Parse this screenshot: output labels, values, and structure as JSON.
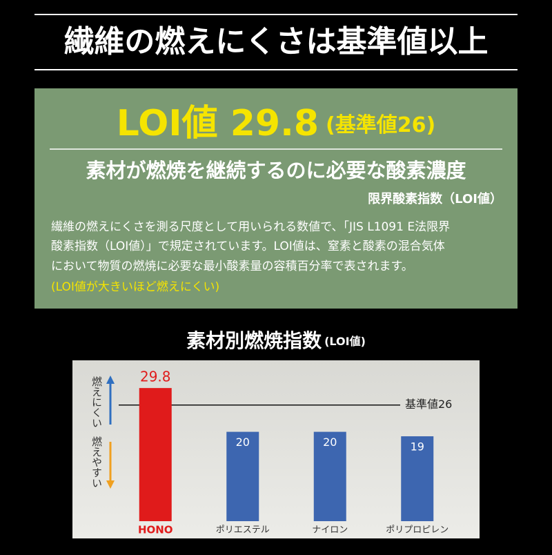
{
  "header": {
    "title": "繊維の燃えにくさは基準値以上"
  },
  "panel": {
    "headline": "LOI値 29.8",
    "headline_note": "(基準値26)",
    "subtitle": "素材が燃焼を継続するのに必要な酸素濃度",
    "subtitle_note": "限界酸素指数（LOI値）",
    "lines": [
      "繊維の燃えにくさを測る尺度として用いられる数値で、「JIS L1091 E法限界",
      "酸素指数（LOI値）」で規定されています。LOI値は、窒素と酸素の混合気体",
      "において物質の燃焼に必要な最小酸素量の容積百分率で表されます。"
    ],
    "note": "(LOI値が大きいほど燃えにくい)"
  },
  "chart_data": {
    "type": "bar",
    "title": "素材別燃焼指数",
    "title_note": "(LOI値)",
    "categories": [
      "HONO",
      "ポリエステル",
      "ナイロン",
      "ポリプロピレン"
    ],
    "values": [
      29.8,
      20,
      20,
      19
    ],
    "colors": [
      "#e01b1b",
      "#3d66b0",
      "#3d66b0",
      "#3d66b0"
    ],
    "ylim": [
      0,
      36
    ],
    "reference": {
      "value": 26,
      "label": "基準値26"
    },
    "annotations": {
      "up": "燃えにくい",
      "down": "燃えやすい"
    }
  }
}
